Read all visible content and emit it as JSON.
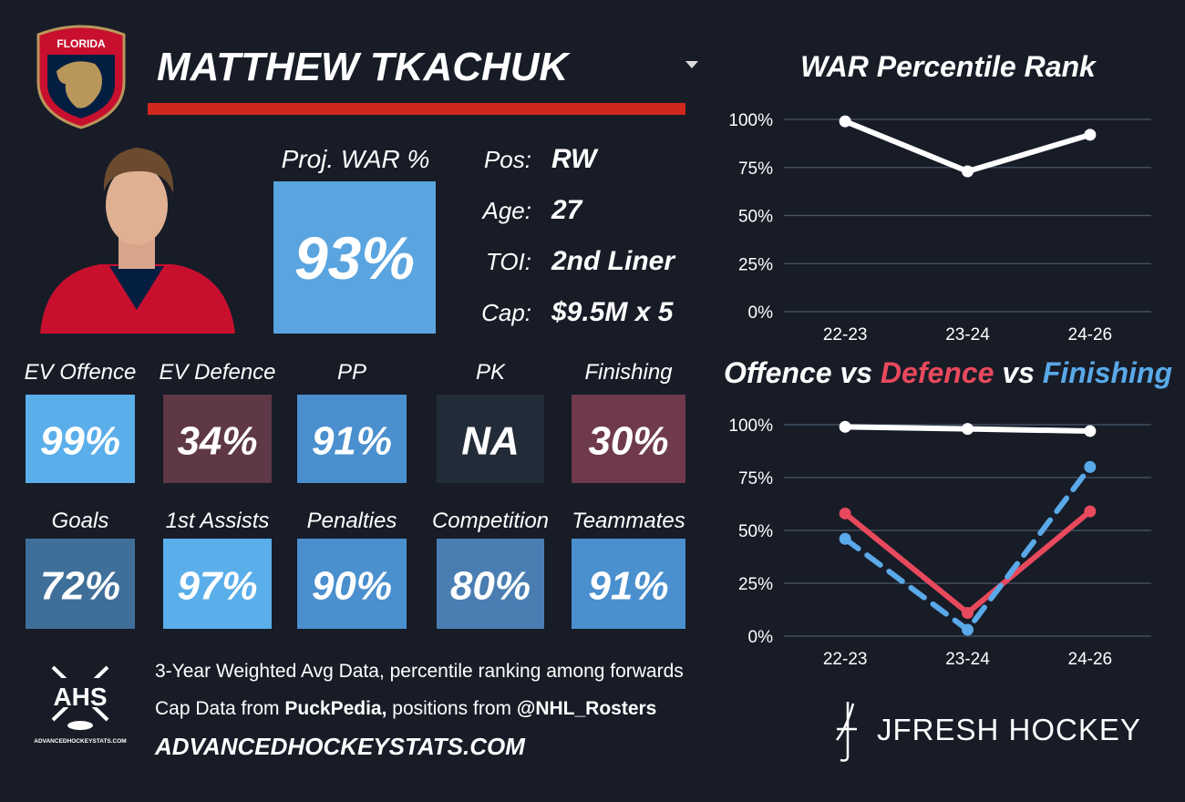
{
  "header": {
    "team": "FLORIDA",
    "player": "MATTHEW TKACHUK"
  },
  "war": {
    "label": "Proj. WAR %",
    "value": "93%",
    "color": "#5aa5e0"
  },
  "info": [
    {
      "label": "Pos:",
      "value": "RW"
    },
    {
      "label": "Age:",
      "value": "27"
    },
    {
      "label": "TOI:",
      "value": "2nd Liner"
    },
    {
      "label": "Cap:",
      "value": "$9.5M x 5"
    }
  ],
  "tiles": [
    [
      {
        "label": "EV Offence",
        "value": "99%",
        "color": "#5aaeea"
      },
      {
        "label": "EV Defence",
        "value": "34%",
        "color": "#5e3846"
      },
      {
        "label": "PP",
        "value": "91%",
        "color": "#4a8fce"
      },
      {
        "label": "PK",
        "value": "NA",
        "color": "#222c38"
      },
      {
        "label": "Finishing",
        "value": "30%",
        "color": "#6e3a4c"
      }
    ],
    [
      {
        "label": "Goals",
        "value": "72%",
        "color": "#3f6f99"
      },
      {
        "label": "1st Assists",
        "value": "97%",
        "color": "#5aaeea"
      },
      {
        "label": "Penalties",
        "value": "90%",
        "color": "#4a8fce"
      },
      {
        "label": "Competition",
        "value": "80%",
        "color": "#4a7eb2"
      },
      {
        "label": "Teammates",
        "value": "91%",
        "color": "#4a8fce"
      }
    ]
  ],
  "footer": {
    "logo": "AHS",
    "logo_site": "ADVANCEDHOCKEYSTATS.COM",
    "note": "3-Year Weighted Avg Data, percentile ranking among forwards",
    "credit": [
      "Cap Data from ",
      "PuckPedia,",
      " positions from ",
      "@NHL_Rosters"
    ],
    "site": "ADVANCEDHOCKEYSTATS.COM",
    "brand": "JFRESH HOCKEY"
  },
  "chart_data": [
    {
      "type": "line",
      "title": "WAR Percentile Rank",
      "categories": [
        "22-23",
        "23-24",
        "24-26"
      ],
      "series": [
        {
          "color": "#ffffff",
          "values": [
            99,
            73,
            92
          ]
        }
      ],
      "ylim": [
        0,
        100
      ],
      "yticks": [
        {
          "value": 0,
          "label": "0%"
        },
        {
          "value": 25,
          "label": "25%"
        },
        {
          "value": 50,
          "label": "50%"
        },
        {
          "value": 75,
          "label": "75%"
        },
        {
          "value": 100,
          "label": "100%"
        }
      ],
      "grid": true
    },
    {
      "type": "line",
      "title_separator": "vs",
      "categories": [
        "22-23",
        "23-24",
        "24-26"
      ],
      "series": [
        {
          "name": "Offence",
          "color": "#ffffff",
          "values": [
            99,
            98,
            97
          ]
        },
        {
          "name": "Defence",
          "color": "#e8495d",
          "values": [
            58,
            11,
            59
          ]
        },
        {
          "name": "Finishing",
          "color": "#5aa9e8",
          "dashed": true,
          "values": [
            46,
            3,
            80
          ]
        }
      ],
      "ylim": [
        0,
        100
      ],
      "yticks": [
        {
          "value": 0,
          "label": "0%"
        },
        {
          "value": 25,
          "label": "25%"
        },
        {
          "value": 50,
          "label": "50%"
        },
        {
          "value": 75,
          "label": "75%"
        },
        {
          "value": 100,
          "label": "100%"
        }
      ],
      "grid": true
    }
  ]
}
